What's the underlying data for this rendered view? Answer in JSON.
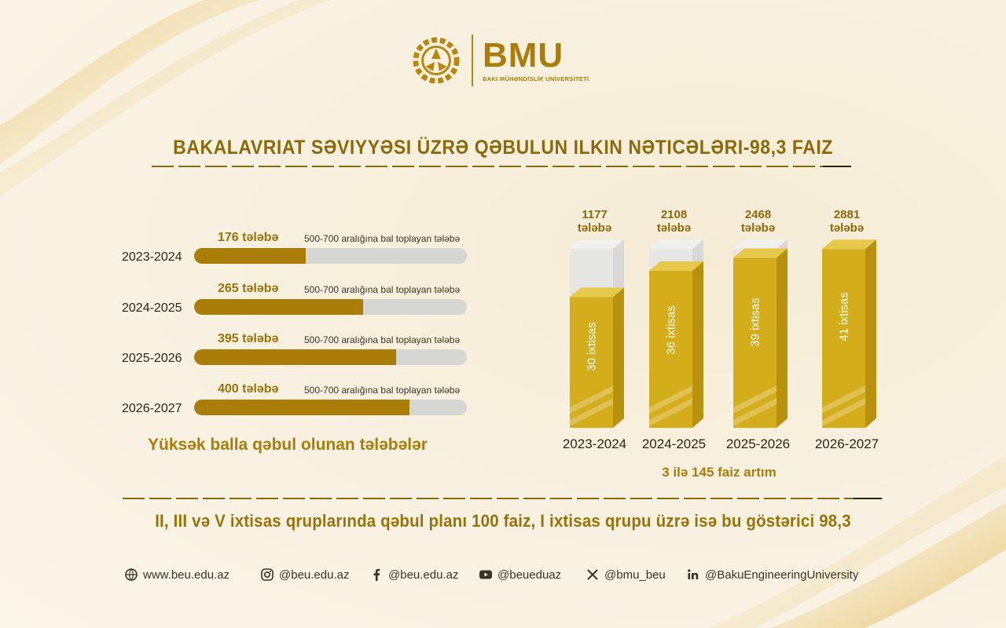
{
  "header": {
    "brand": "BMU",
    "brand_sub": "BAKI MÜHƏNDİSLİK UNİVERSİTETİ",
    "title": "BAKALAVRIAT SƏVIYYƏSI ÜZRƏ QƏBULUN ILKIN NƏTICƏLƏRI-98,3 FAIZ"
  },
  "chart_data": [
    {
      "type": "bar",
      "orientation": "horizontal",
      "title": "Yüksək balla qəbul olunan tələbələr",
      "categories": [
        "2023-2024",
        "2024-2025",
        "2025-2026",
        "2026-2027"
      ],
      "values": [
        176,
        265,
        395,
        400
      ],
      "value_labels": [
        "176 tələbə",
        "265 tələbə",
        "395 tələbə",
        "400 tələbə"
      ],
      "note": "500-700 aralığına bal toplayan tələbə",
      "fill_fraction": [
        0.41,
        0.62,
        0.74,
        0.79
      ],
      "colors": {
        "fill": "#a97d08",
        "track": "#d6d6d4"
      }
    },
    {
      "type": "bar",
      "orientation": "vertical",
      "title": "3 ilə 145 faiz artım",
      "categories": [
        "2023-2024",
        "2024-2025",
        "2025-2026",
        "2026-2027"
      ],
      "totals": [
        1177,
        2108,
        2468,
        2881
      ],
      "total_unit": "tələbə",
      "specialties": [
        30,
        36,
        39,
        41
      ],
      "specialty_labels": [
        "30 ixtisas",
        "36 ixtisas",
        "39 ixtisas",
        "41 ixtisas"
      ],
      "colors": {
        "fill": "#d4ad1b",
        "fill_top": "#e6c84a",
        "fill_side": "#b8920e",
        "empty": "#e6e6e4"
      }
    }
  ],
  "footer": {
    "text": "II, III və V ixtisas qruplarında qəbul planı 100 faiz, I ixtisas qrupu üzrə isə bu göstərici 98,3",
    "links": [
      {
        "icon": "globe-icon",
        "label": "www.beu.edu.az"
      },
      {
        "icon": "instagram-icon",
        "label": "@beu.edu.az"
      },
      {
        "icon": "facebook-icon",
        "label": "@beu.edu.az"
      },
      {
        "icon": "youtube-icon",
        "label": "@beueduaz"
      },
      {
        "icon": "x-icon",
        "label": "@bmu_beu"
      },
      {
        "icon": "linkedin-icon",
        "label": "@BakuEngineeringUniversity"
      }
    ]
  }
}
